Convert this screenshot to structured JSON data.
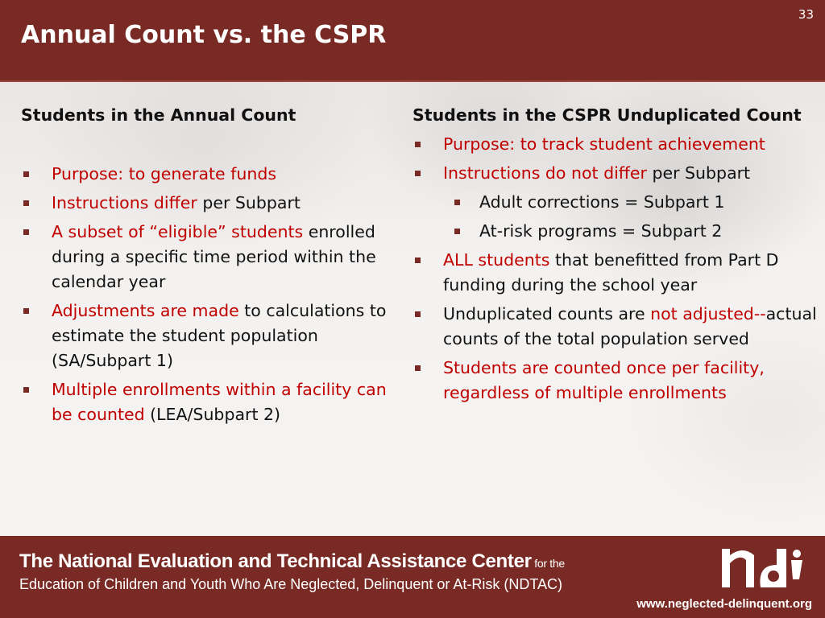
{
  "slide": {
    "title": "Annual Count vs. the CSPR",
    "page_number": "33"
  },
  "left": {
    "heading": "Students in the Annual Count",
    "items": [
      {
        "red": "Purpose: to generate funds",
        "rest": ""
      },
      {
        "red": "Instructions differ",
        "rest": " per Subpart"
      },
      {
        "red": "A subset of “eligible” students",
        "rest": " enrolled during a specific time period within the calendar year"
      },
      {
        "red": "Adjustments are made",
        "rest": " to calculations to estimate the student population (SA/Subpart 1)"
      },
      {
        "red": "Multiple enrollments within a facility can be counted",
        "rest": " (LEA/Subpart 2)"
      }
    ]
  },
  "right": {
    "heading": "Students in the CSPR Unduplicated Count",
    "items": [
      {
        "red": "Purpose: to track student achievement"
      },
      {
        "red": "Instructions do not differ",
        "rest": " per Subpart",
        "sub": [
          "Adult corrections = Subpart 1",
          "At-risk programs = Subpart 2"
        ]
      },
      {
        "red": "ALL students",
        "rest": " that benefitted from Part D funding during the school year"
      },
      {
        "pre": "Unduplicated counts are ",
        "red": "not adjusted--",
        "rest": "actual counts of the total population served"
      },
      {
        "red": "Students are counted once per facility, regardless of multiple enrollments"
      }
    ]
  },
  "footer": {
    "org_line": "The National Evaluation and Technical Assistance Center",
    "org_line_suffix": " for the",
    "org_line2": "Education of Children and Youth Who Are Neglected, Delinquent or At-Risk (NDTAC)",
    "url": "www.neglected-delinquent.org"
  },
  "colors": {
    "brand": "#7a2a24",
    "emphasis": "#c00000"
  },
  "logo": {
    "text": "nd"
  }
}
